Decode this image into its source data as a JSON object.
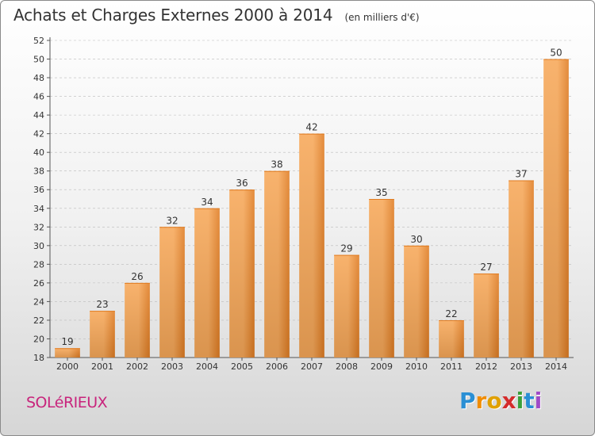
{
  "title": "Achats et Charges Externes 2000 à 2014",
  "subtitle": "(en milliers d'€)",
  "place": "SOLéRIEUX",
  "logo": {
    "letters": [
      "P",
      "r",
      "o",
      "x",
      "i",
      "t",
      "i"
    ],
    "colors": [
      "#2a8fd4",
      "#f08c00",
      "#e0a000",
      "#d42c2c",
      "#3aa03a",
      "#2a8fd4",
      "#a04ac8"
    ]
  },
  "colors": {
    "bar_light": "#f7a859",
    "bar_dark": "#e07c22",
    "axis": "#555555",
    "grid": "#bbbbbb"
  },
  "chart_data": {
    "type": "bar",
    "categories": [
      "2000",
      "2001",
      "2002",
      "2003",
      "2004",
      "2005",
      "2006",
      "2007",
      "2008",
      "2009",
      "2010",
      "2011",
      "2012",
      "2013",
      "2014"
    ],
    "values": [
      19,
      23,
      26,
      32,
      34,
      36,
      38,
      42,
      29,
      35,
      30,
      22,
      27,
      37,
      50
    ],
    "title": "Achats et Charges Externes 2000 à 2014",
    "xlabel": "",
    "ylabel": "",
    "ylim": [
      18,
      52
    ],
    "yticks": [
      18,
      20,
      22,
      24,
      26,
      28,
      30,
      32,
      34,
      36,
      38,
      40,
      42,
      44,
      46,
      48,
      50,
      52
    ],
    "grid": true,
    "data_labels": true
  }
}
